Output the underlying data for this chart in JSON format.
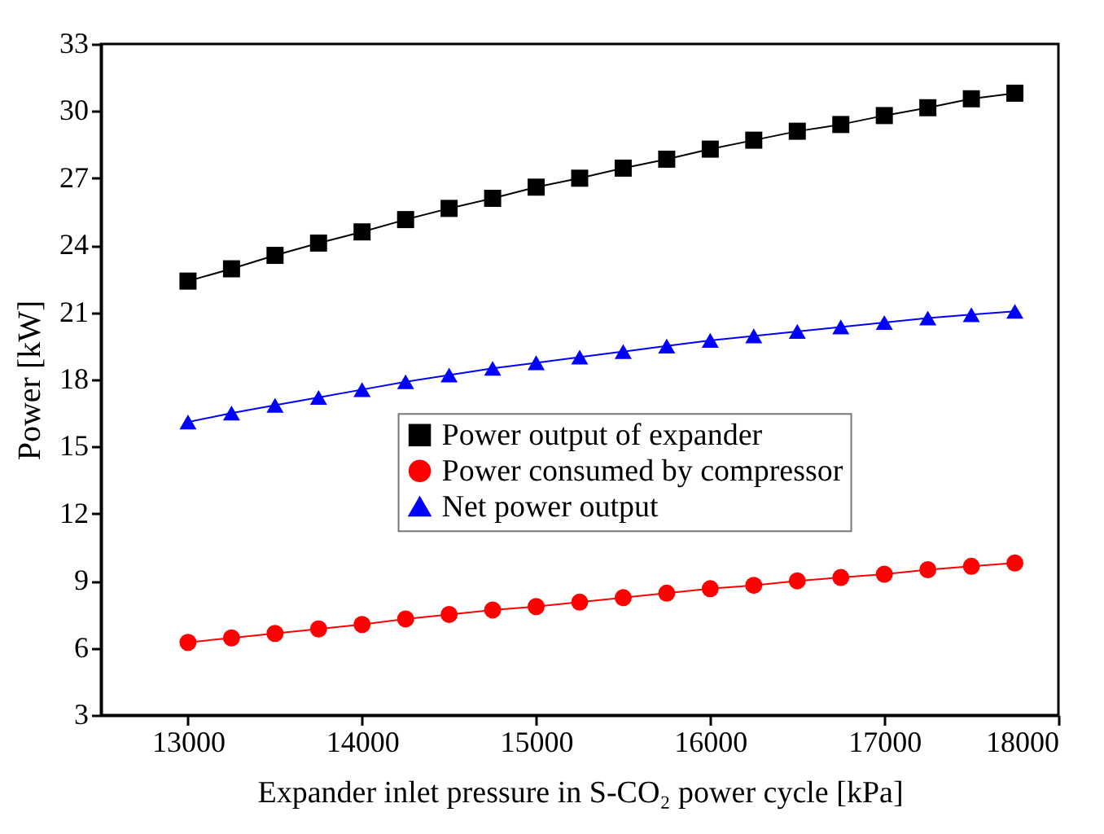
{
  "chart_data": {
    "type": "line",
    "xlabel": "Expander inlet pressure in S-CO₂ power cycle [kPa]",
    "ylabel": "Power [kW]",
    "x": [
      13000,
      13250,
      13500,
      13750,
      14000,
      14250,
      14500,
      14750,
      15000,
      15250,
      15500,
      15750,
      16000,
      16250,
      16500,
      16750,
      17000,
      17250,
      17500,
      17750
    ],
    "series": [
      {
        "name": "Power output of expander",
        "color": "#000000",
        "marker": "square",
        "values": [
          22.4,
          22.95,
          23.55,
          24.1,
          24.6,
          25.15,
          25.65,
          26.1,
          26.6,
          27.0,
          27.45,
          27.85,
          28.3,
          28.7,
          29.1,
          29.4,
          29.8,
          30.15,
          30.55,
          30.8
        ]
      },
      {
        "name": "Power consumed by compressor",
        "color": "#ff0000",
        "marker": "circle",
        "values": [
          6.25,
          6.45,
          6.65,
          6.85,
          7.05,
          7.3,
          7.5,
          7.7,
          7.85,
          8.05,
          8.25,
          8.45,
          8.65,
          8.8,
          9.0,
          9.15,
          9.3,
          9.5,
          9.65,
          9.8
        ]
      },
      {
        "name": "Net power output",
        "color": "#0000ff",
        "marker": "triangle",
        "values": [
          16.1,
          16.5,
          16.85,
          17.2,
          17.55,
          17.9,
          18.2,
          18.5,
          18.75,
          19.0,
          19.25,
          19.5,
          19.75,
          19.95,
          20.15,
          20.35,
          20.55,
          20.75,
          20.9,
          21.05
        ]
      }
    ],
    "xlim": [
      12500,
      18000
    ],
    "xticks": [
      13000,
      14000,
      15000,
      16000,
      17000,
      18000
    ],
    "ylim": [
      3,
      33
    ],
    "yticks": [
      3,
      6,
      9,
      12,
      15,
      18,
      21,
      24,
      27,
      30,
      33
    ],
    "grid": false,
    "legend": "right",
    "line_style": "solid"
  }
}
